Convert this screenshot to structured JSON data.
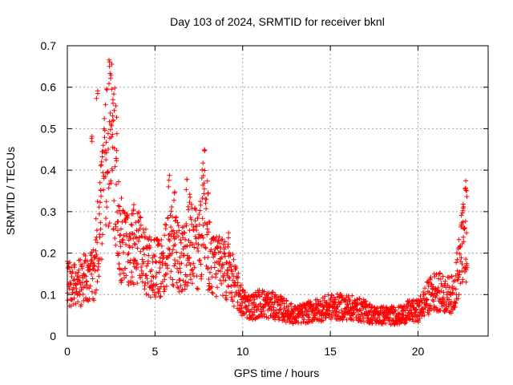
{
  "chart_data": {
    "type": "scatter",
    "title": "Day 103 of 2024, SRMTID for receiver bknl",
    "xlabel": "GPS time / hours",
    "ylabel": "SRMTID / TECUs",
    "xlim": [
      0,
      24
    ],
    "ylim": [
      0,
      0.7
    ],
    "x_ticks": [
      0,
      5,
      10,
      15,
      20
    ],
    "x_tick_labels": [
      "0",
      "5",
      "10",
      "15",
      "20"
    ],
    "y_ticks": [
      0,
      0.1,
      0.2,
      0.3,
      0.4,
      0.5,
      0.6,
      0.7
    ],
    "y_tick_labels": [
      "0",
      "0.1",
      "0.2",
      "0.3",
      "0.4",
      "0.5",
      "0.6",
      "0.7"
    ],
    "grid": true,
    "marker": "+",
    "color": "#ff0000",
    "series": [
      {
        "name": "SRMTID",
        "envelope_x": [
          0,
          0.5,
          1,
          1.5,
          2,
          2.3,
          2.5,
          2.8,
          3,
          3.5,
          4,
          4.5,
          5,
          5.5,
          6,
          6.5,
          7,
          7.5,
          7.8,
          8,
          8.5,
          9,
          9.3,
          9.6,
          10,
          10.5,
          11,
          12,
          13,
          14,
          15,
          16,
          17,
          17.5,
          18,
          19,
          19.5,
          20,
          20.5,
          21,
          21.5,
          22,
          22.3,
          22.6,
          22.8
        ],
        "envelope_y": [
          0.13,
          0.12,
          0.14,
          0.15,
          0.32,
          0.45,
          0.48,
          0.38,
          0.24,
          0.2,
          0.22,
          0.18,
          0.16,
          0.18,
          0.22,
          0.18,
          0.24,
          0.2,
          0.3,
          0.2,
          0.17,
          0.16,
          0.15,
          0.12,
          0.08,
          0.07,
          0.08,
          0.07,
          0.05,
          0.06,
          0.07,
          0.07,
          0.06,
          0.05,
          0.05,
          0.05,
          0.06,
          0.06,
          0.09,
          0.11,
          0.1,
          0.1,
          0.16,
          0.22,
          0.17
        ],
        "peaks": [
          {
            "x": 1.4,
            "y": 0.5
          },
          {
            "x": 1.7,
            "y": 0.6
          },
          {
            "x": 1.9,
            "y": 0.38
          },
          {
            "x": 2.4,
            "y": 0.69
          },
          {
            "x": 2.5,
            "y": 0.63
          },
          {
            "x": 2.6,
            "y": 0.54
          },
          {
            "x": 2.2,
            "y": 0.46
          },
          {
            "x": 2.8,
            "y": 0.45
          },
          {
            "x": 3.0,
            "y": 0.32
          },
          {
            "x": 3.8,
            "y": 0.32
          },
          {
            "x": 5.8,
            "y": 0.39
          },
          {
            "x": 6.1,
            "y": 0.35
          },
          {
            "x": 6.8,
            "y": 0.39
          },
          {
            "x": 7.0,
            "y": 0.36
          },
          {
            "x": 7.8,
            "y": 0.47
          },
          {
            "x": 7.7,
            "y": 0.42
          },
          {
            "x": 8.0,
            "y": 0.38
          },
          {
            "x": 9.2,
            "y": 0.26
          },
          {
            "x": 22.5,
            "y": 0.31
          },
          {
            "x": 22.7,
            "y": 0.39
          },
          {
            "x": 22.75,
            "y": 0.37
          },
          {
            "x": 22.6,
            "y": 0.34
          }
        ]
      }
    ]
  }
}
